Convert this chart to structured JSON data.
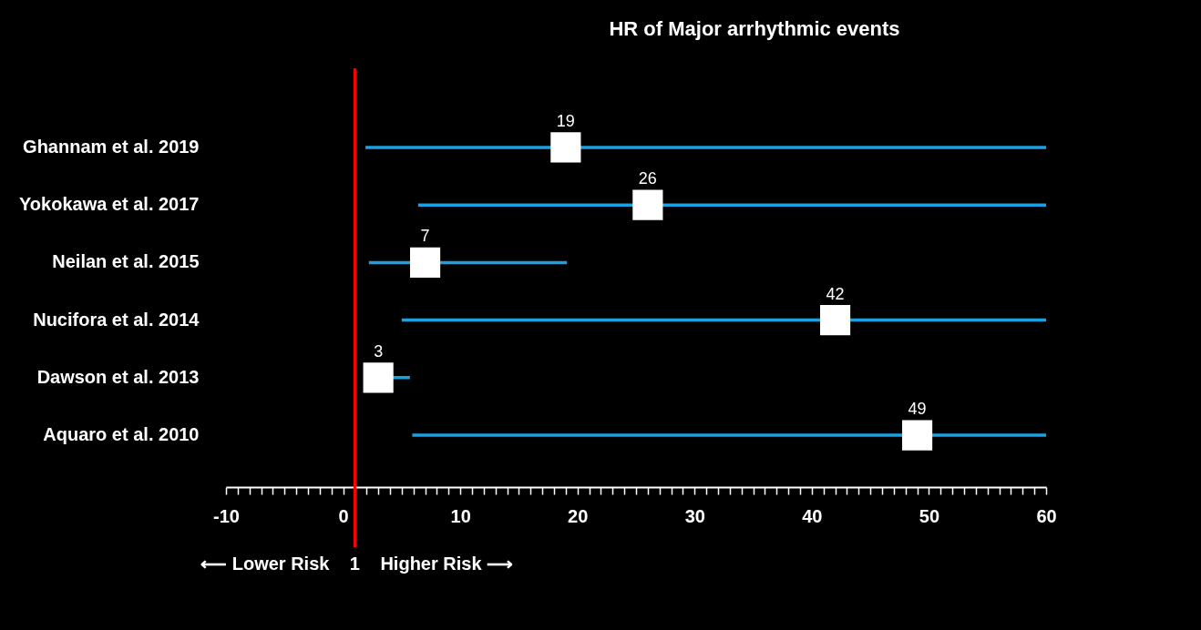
{
  "chart_data": {
    "type": "scatter",
    "orientation": "horizontal",
    "title": "HR of Major arrhythmic events",
    "categories": [
      "Ghannam et al. 2019",
      "Yokokawa et al. 2017",
      "Neilan et al. 2015",
      "Nucifora et al. 2014",
      "Dawson et al. 2013",
      "Aquaro et al. 2010"
    ],
    "series": [
      {
        "color": "#ffffff",
        "values": [
          19,
          26,
          7,
          42,
          3,
          49
        ],
        "errors": [
          [
            1.9,
            60
          ],
          [
            6.4,
            60
          ],
          [
            2.2,
            19.1
          ],
          [
            5.0,
            60
          ],
          [
            1.9,
            5.7
          ],
          [
            5.9,
            60
          ]
        ]
      }
    ],
    "data_labels": true,
    "marker": "square",
    "grid": false,
    "xlim": [
      -10,
      60
    ],
    "xticks": [
      -10,
      {
        "value": -9,
        "label": null
      },
      {
        "value": -8,
        "label": null
      },
      {
        "value": -7,
        "label": null
      },
      {
        "value": -6,
        "label": null
      },
      {
        "value": -5,
        "label": null
      },
      {
        "value": -4,
        "label": null
      },
      {
        "value": -3,
        "label": null
      },
      {
        "value": -2,
        "label": null
      },
      {
        "value": -1,
        "label": null
      },
      0,
      {
        "value": 1,
        "label": null
      },
      {
        "value": 2,
        "label": null
      },
      {
        "value": 3,
        "label": null
      },
      {
        "value": 4,
        "label": null
      },
      {
        "value": 5,
        "label": null
      },
      {
        "value": 6,
        "label": null
      },
      {
        "value": 7,
        "label": null
      },
      {
        "value": 8,
        "label": null
      },
      {
        "value": 9,
        "label": null
      },
      10,
      {
        "value": 11,
        "label": null
      },
      {
        "value": 12,
        "label": null
      },
      {
        "value": 13,
        "label": null
      },
      {
        "value": 14,
        "label": null
      },
      {
        "value": 15,
        "label": null
      },
      {
        "value": 16,
        "label": null
      },
      {
        "value": 17,
        "label": null
      },
      {
        "value": 18,
        "label": null
      },
      {
        "value": 19,
        "label": null
      },
      20,
      {
        "value": 21,
        "label": null
      },
      {
        "value": 22,
        "label": null
      },
      {
        "value": 23,
        "label": null
      },
      {
        "value": 24,
        "label": null
      },
      {
        "value": 25,
        "label": null
      },
      {
        "value": 26,
        "label": null
      },
      {
        "value": 27,
        "label": null
      },
      {
        "value": 28,
        "label": null
      },
      {
        "value": 29,
        "label": null
      },
      30,
      {
        "value": 31,
        "label": null
      },
      {
        "value": 32,
        "label": null
      },
      {
        "value": 33,
        "label": null
      },
      {
        "value": 34,
        "label": null
      },
      {
        "value": 35,
        "label": null
      },
      {
        "value": 36,
        "label": null
      },
      {
        "value": 37,
        "label": null
      },
      {
        "value": 38,
        "label": null
      },
      {
        "value": 39,
        "label": null
      },
      40,
      {
        "value": 41,
        "label": null
      },
      {
        "value": 42,
        "label": null
      },
      {
        "value": 43,
        "label": null
      },
      {
        "value": 44,
        "label": null
      },
      {
        "value": 45,
        "label": null
      },
      {
        "value": 46,
        "label": null
      },
      {
        "value": 47,
        "label": null
      },
      {
        "value": 48,
        "label": null
      },
      {
        "value": 49,
        "label": null
      },
      50,
      {
        "value": 51,
        "label": null
      },
      {
        "value": 52,
        "label": null
      },
      {
        "value": 53,
        "label": null
      },
      {
        "value": 54,
        "label": null
      },
      {
        "value": 55,
        "label": null
      },
      {
        "value": 56,
        "label": null
      },
      {
        "value": 57,
        "label": null
      },
      {
        "value": 58,
        "label": null
      },
      {
        "value": 59,
        "label": null
      },
      60
    ],
    "ref_lines": [
      {
        "axis": "x",
        "value": 1,
        "label": "1",
        "color": "#ff0000"
      }
    ],
    "annotations": [
      "⟵ Lower Risk",
      "Higher Risk ⟶"
    ]
  }
}
